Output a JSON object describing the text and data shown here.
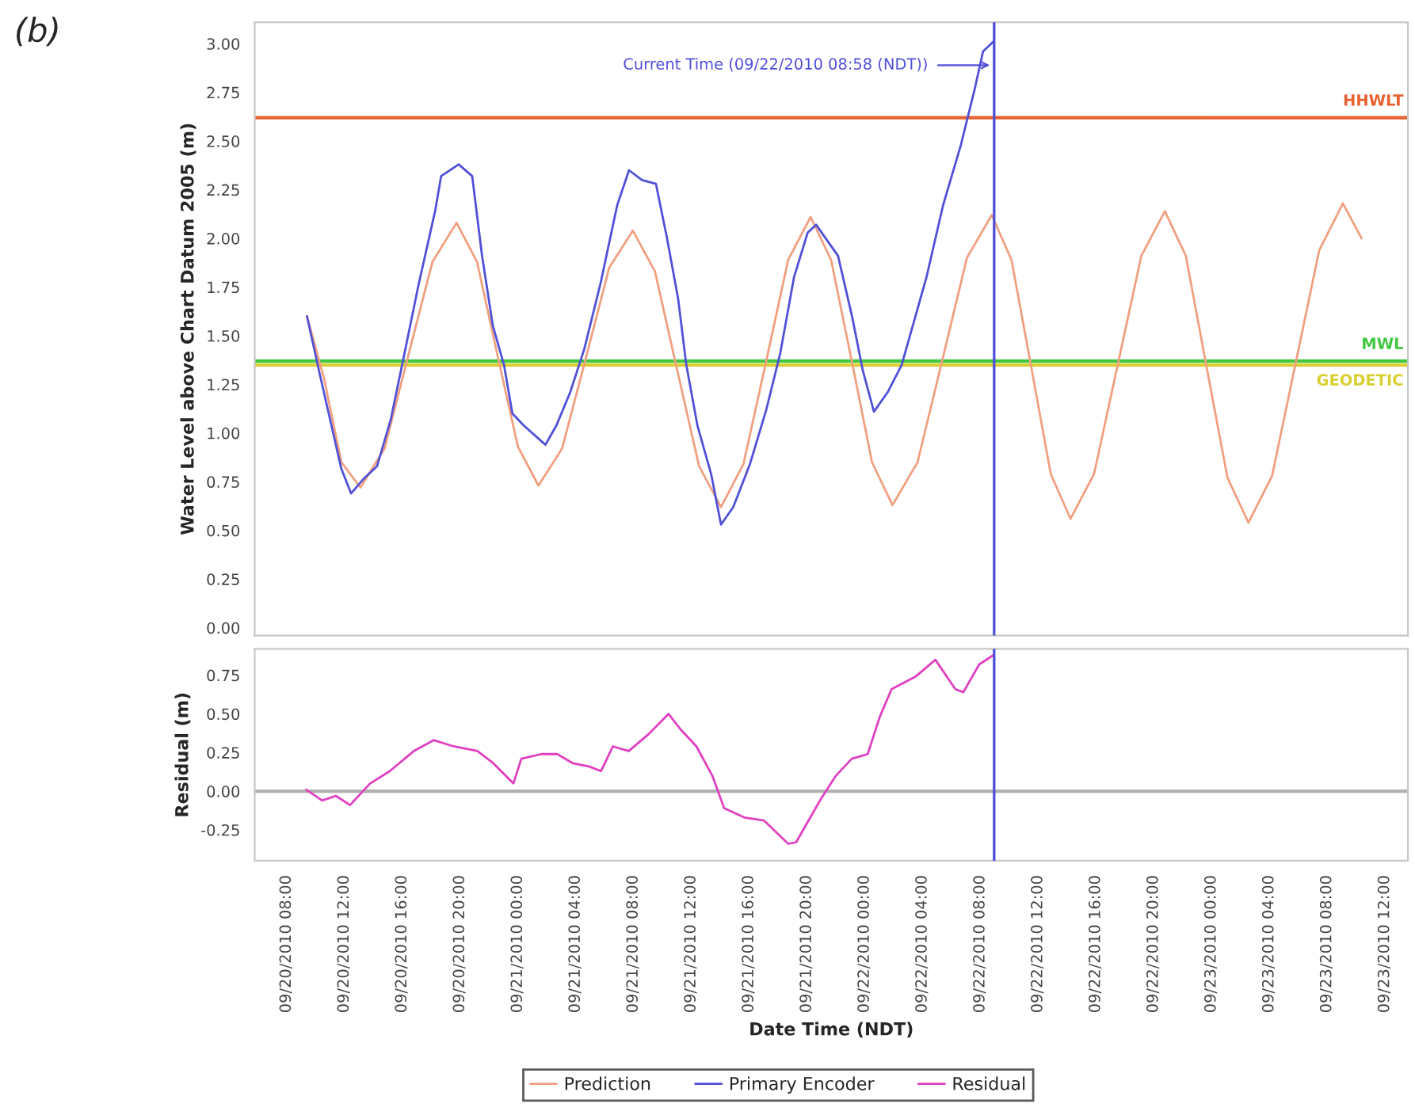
{
  "chart_data": [
    {
      "type": "line",
      "title": "(b)",
      "ylabel": "Water Level above Chart Datum 2005 (m)",
      "xlim": [
        "2010-09-20T05:48",
        "2010-09-23T13:36"
      ],
      "ylim": [
        -0.04,
        3.11
      ],
      "yticks": [
        {
          "value": 0,
          "label": "0.00"
        },
        {
          "value": 0.25,
          "label": "0.25"
        },
        {
          "value": 0.5,
          "label": "0.50"
        },
        {
          "value": 0.75,
          "label": "0.75"
        },
        {
          "value": 1,
          "label": "1.00"
        },
        {
          "value": 1.25,
          "label": "1.25"
        },
        {
          "value": 1.5,
          "label": "1.50"
        },
        {
          "value": 1.75,
          "label": "1.75"
        },
        {
          "value": 2,
          "label": "2.00"
        },
        {
          "value": 2.25,
          "label": "2.25"
        },
        {
          "value": 2.5,
          "label": "2.50"
        },
        {
          "value": 2.75,
          "label": "2.75"
        },
        {
          "value": 3,
          "label": "3.00"
        }
      ],
      "tick_labels": "y",
      "legend": "bottom",
      "series": [
        {
          "name": "Prediction",
          "color": "#f0a080",
          "x": [
            "2010-09-20T09:25",
            "2010-09-20T10:36",
            "2010-09-20T11:48",
            "2010-09-20T13:07",
            "2010-09-20T14:47",
            "2010-09-20T16:26",
            "2010-09-20T18:06",
            "2010-09-20T19:46",
            "2010-09-20T21:11",
            "2010-09-20T22:36",
            "2010-09-21T00:01",
            "2010-09-21T01:26",
            "2010-09-21T03:04",
            "2010-09-21T04:42",
            "2010-09-21T06:20",
            "2010-09-21T07:58",
            "2010-09-21T09:30",
            "2010-09-21T11:01",
            "2010-09-21T12:33",
            "2010-09-21T14:04",
            "2010-09-21T15:37",
            "2010-09-21T17:10",
            "2010-09-21T18:43",
            "2010-09-21T20:16",
            "2010-09-21T21:41",
            "2010-09-21T23:07",
            "2010-09-22T00:31",
            "2010-09-22T01:56",
            "2010-09-22T03:40",
            "2010-09-22T05:22",
            "2010-09-22T07:05",
            "2010-09-22T08:48",
            "2010-09-22T10:10",
            "2010-09-22T11:32",
            "2010-09-22T12:53",
            "2010-09-22T14:15",
            "2010-09-22T15:53",
            "2010-09-22T17:31",
            "2010-09-22T19:09",
            "2010-09-22T20:47",
            "2010-09-22T22:14",
            "2010-09-22T23:40",
            "2010-09-23T01:07",
            "2010-09-23T02:34",
            "2010-09-23T04:12",
            "2010-09-23T05:50",
            "2010-09-23T07:28",
            "2010-09-23T09:06",
            "2010-09-23T10:24"
          ],
          "values": [
            1.6,
            1.28,
            0.85,
            0.72,
            0.92,
            1.4,
            1.88,
            2.08,
            1.88,
            1.4,
            0.93,
            0.73,
            0.92,
            1.38,
            1.85,
            2.04,
            1.83,
            1.33,
            0.83,
            0.62,
            0.84,
            1.36,
            1.89,
            2.11,
            1.89,
            1.37,
            0.85,
            0.63,
            0.85,
            1.37,
            1.9,
            2.12,
            1.89,
            1.34,
            0.79,
            0.56,
            0.79,
            1.35,
            1.91,
            2.14,
            1.91,
            1.34,
            0.77,
            0.54,
            0.78,
            1.36,
            1.94,
            2.18,
            2.0
          ]
        },
        {
          "name": "Primary Encoder",
          "color": "#5050d8",
          "x": [
            "2010-09-20T09:25",
            "2010-09-20T10:15",
            "2010-09-20T11:47",
            "2010-09-20T12:28",
            "2010-09-20T13:24",
            "2010-09-20T14:16",
            "2010-09-20T15:13",
            "2010-09-20T16:10",
            "2010-09-20T17:08",
            "2010-09-20T18:17",
            "2010-09-20T18:42",
            "2010-09-20T19:55",
            "2010-09-20T20:51",
            "2010-09-20T21:32",
            "2010-09-20T22:17",
            "2010-09-20T23:03",
            "2010-09-20T23:38",
            "2010-09-21T00:24",
            "2010-09-21T01:55",
            "2010-09-21T02:41",
            "2010-09-21T03:38",
            "2010-09-21T04:36",
            "2010-09-21T05:44",
            "2010-09-21T06:53",
            "2010-09-21T07:42",
            "2010-09-21T08:36",
            "2010-09-21T09:34",
            "2010-09-21T10:20",
            "2010-09-21T11:06",
            "2010-09-21T11:40",
            "2010-09-21T12:26",
            "2010-09-21T13:23",
            "2010-09-21T14:04",
            "2010-09-21T14:55",
            "2010-09-21T16:04",
            "2010-09-21T17:12",
            "2010-09-21T18:10",
            "2010-09-21T19:07",
            "2010-09-21T20:04",
            "2010-09-21T20:39",
            "2010-09-21T22:10",
            "2010-09-21T23:08",
            "2010-09-21T23:53",
            "2010-09-22T00:39",
            "2010-09-22T01:36",
            "2010-09-22T02:34",
            "2010-09-22T03:20",
            "2010-09-22T04:17",
            "2010-09-22T05:26",
            "2010-09-22T06:40",
            "2010-09-22T07:36",
            "2010-09-22T08:12",
            "2010-09-22T08:54"
          ],
          "values": [
            1.6,
            1.32,
            0.82,
            0.69,
            0.77,
            0.83,
            1.07,
            1.41,
            1.76,
            2.14,
            2.32,
            2.38,
            2.32,
            1.91,
            1.55,
            1.35,
            1.1,
            1.04,
            0.94,
            1.04,
            1.21,
            1.43,
            1.77,
            2.17,
            2.35,
            2.3,
            2.28,
            2.0,
            1.69,
            1.35,
            1.04,
            0.79,
            0.53,
            0.62,
            0.84,
            1.12,
            1.41,
            1.8,
            2.03,
            2.07,
            1.91,
            1.6,
            1.32,
            1.11,
            1.21,
            1.35,
            1.55,
            1.8,
            2.17,
            2.48,
            2.76,
            2.96,
            3.01
          ]
        }
      ],
      "ref_lines": [
        {
          "axis": "y",
          "value": 2.62,
          "label": "HHWLT",
          "color": "#e86030"
        },
        {
          "axis": "y",
          "value": 1.35,
          "label": "GEODETIC",
          "color": "#d8d030"
        },
        {
          "axis": "y",
          "value": 1.37,
          "label": "MWL",
          "color": "#40c840"
        },
        {
          "axis": "x",
          "value": "2010-09-22T08:58",
          "label": "Current Time (09/22/2010 08:58 (NDT))",
          "color": "#5050d8"
        }
      ]
    },
    {
      "type": "line",
      "xlabel": "Date Time (NDT)",
      "ylabel": "Residual (m)",
      "xlim": [
        "2010-09-20T05:48",
        "2010-09-23T13:36"
      ],
      "ylim": [
        -0.45,
        0.92
      ],
      "yticks": [
        {
          "value": -0.25,
          "label": "-0.25"
        },
        {
          "value": 0,
          "label": "0.00"
        },
        {
          "value": 0.25,
          "label": "0.25"
        },
        {
          "value": 0.5,
          "label": "0.50"
        },
        {
          "value": 0.75,
          "label": "0.75"
        }
      ],
      "xticks": [
        {
          "value": "2010-09-20T08:00",
          "label": "09/20/2010 08:00"
        },
        {
          "value": "2010-09-20T12:00",
          "label": "09/20/2010 12:00"
        },
        {
          "value": "2010-09-20T16:00",
          "label": "09/20/2010 16:00"
        },
        {
          "value": "2010-09-20T20:00",
          "label": "09/20/2010 20:00"
        },
        {
          "value": "2010-09-21T00:00",
          "label": "09/21/2010 00:00"
        },
        {
          "value": "2010-09-21T04:00",
          "label": "09/21/2010 04:00"
        },
        {
          "value": "2010-09-21T08:00",
          "label": "09/21/2010 08:00"
        },
        {
          "value": "2010-09-21T12:00",
          "label": "09/21/2010 12:00"
        },
        {
          "value": "2010-09-21T16:00",
          "label": "09/21/2010 16:00"
        },
        {
          "value": "2010-09-21T20:00",
          "label": "09/21/2010 20:00"
        },
        {
          "value": "2010-09-22T00:00",
          "label": "09/22/2010 00:00"
        },
        {
          "value": "2010-09-22T04:00",
          "label": "09/22/2010 04:00"
        },
        {
          "value": "2010-09-22T08:00",
          "label": "09/22/2010 08:00"
        },
        {
          "value": "2010-09-22T12:00",
          "label": "09/22/2010 12:00"
        },
        {
          "value": "2010-09-22T16:00",
          "label": "09/22/2010 16:00"
        },
        {
          "value": "2010-09-22T20:00",
          "label": "09/22/2010 20:00"
        },
        {
          "value": "2010-09-23T00:00",
          "label": "09/23/2010 00:00"
        },
        {
          "value": "2010-09-23T04:00",
          "label": "09/23/2010 04:00"
        },
        {
          "value": "2010-09-23T08:00",
          "label": "09/23/2010 08:00"
        },
        {
          "value": "2010-09-23T12:00",
          "label": "09/23/2010 12:00"
        }
      ],
      "legend": "bottom",
      "series": [
        {
          "name": "Residual",
          "color": "#e040c0",
          "x": [
            "2010-09-20T09:22",
            "2010-09-20T10:28",
            "2010-09-20T11:25",
            "2010-09-20T12:24",
            "2010-09-20T13:47",
            "2010-09-20T15:09",
            "2010-09-20T16:49",
            "2010-09-20T18:11",
            "2010-09-20T19:34",
            "2010-09-20T21:13",
            "2010-09-20T22:19",
            "2010-09-20T23:42",
            "2010-09-21T00:15",
            "2010-09-21T01:38",
            "2010-09-21T02:44",
            "2010-09-21T03:50",
            "2010-09-21T04:56",
            "2010-09-21T05:46",
            "2010-09-21T06:35",
            "2010-09-21T07:41",
            "2010-09-21T09:04",
            "2010-09-21T10:26",
            "2010-09-21T11:16",
            "2010-09-21T12:22",
            "2010-09-21T13:28",
            "2010-09-21T14:17",
            "2010-09-21T15:41",
            "2010-09-21T17:03",
            "2010-09-21T18:43",
            "2010-09-21T19:16",
            "2010-09-21T20:55",
            "2010-09-21T22:01",
            "2010-09-21T23:07",
            "2010-09-22T00:13",
            "2010-09-22T01:03",
            "2010-09-22T01:52",
            "2010-09-22T03:31",
            "2010-09-22T04:54",
            "2010-09-22T06:17",
            "2010-09-22T06:50",
            "2010-09-22T07:56",
            "2010-09-22T08:55"
          ],
          "values": [
            0.01,
            -0.06,
            -0.03,
            -0.09,
            0.05,
            0.13,
            0.26,
            0.33,
            0.29,
            0.26,
            0.18,
            0.05,
            0.21,
            0.24,
            0.24,
            0.18,
            0.16,
            0.13,
            0.29,
            0.26,
            0.37,
            0.5,
            0.4,
            0.29,
            0.1,
            -0.11,
            -0.17,
            -0.19,
            -0.34,
            -0.33,
            -0.06,
            0.1,
            0.21,
            0.24,
            0.48,
            0.66,
            0.74,
            0.85,
            0.66,
            0.64,
            0.82,
            0.88
          ]
        }
      ],
      "ref_lines": [
        {
          "axis": "y",
          "value": 0,
          "color": "#b0b0b0"
        },
        {
          "axis": "x",
          "value": "2010-09-22T08:58",
          "color": "#5050d8"
        }
      ]
    }
  ]
}
